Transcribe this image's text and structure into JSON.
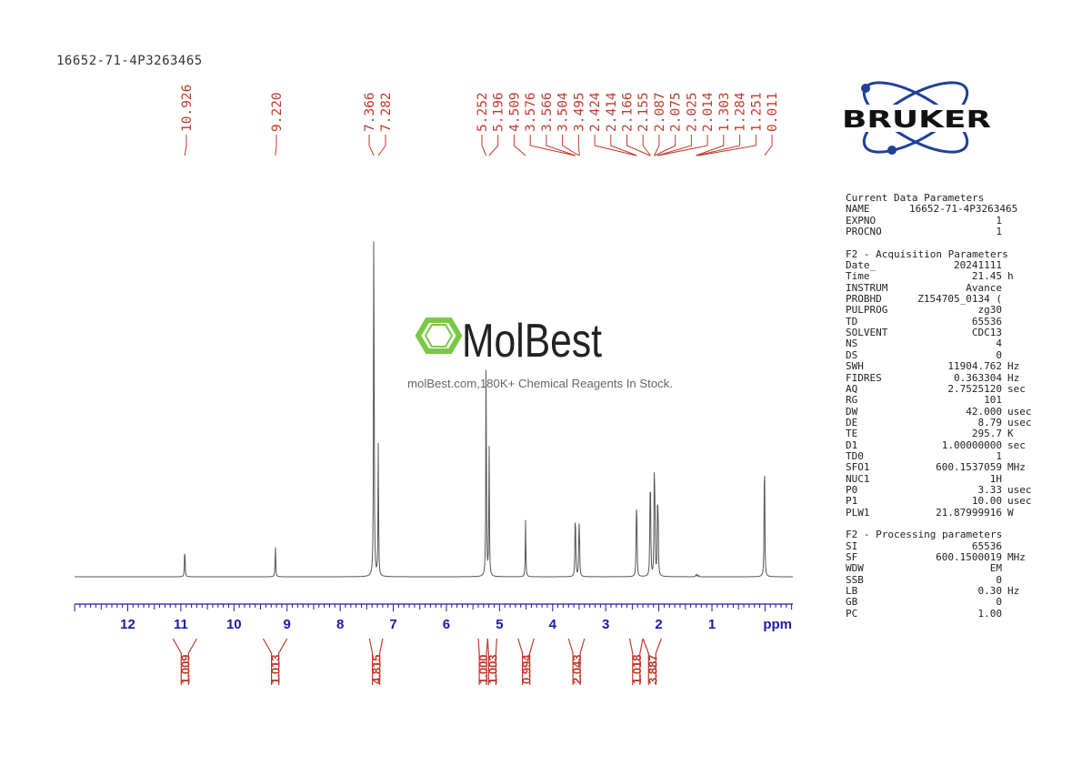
{
  "sample_title": "16652-71-4P3263465",
  "chart_data": {
    "type": "line",
    "xlabel": "ppm",
    "xlim": [
      13.0,
      -0.5
    ],
    "x_reversed": true,
    "x_ticks": [
      12,
      11,
      10,
      9,
      8,
      7,
      6,
      5,
      4,
      3,
      2,
      1
    ],
    "grid": false,
    "series": [
      {
        "peaks": [
          {
            "ppm": 10.926,
            "height": 0.08
          },
          {
            "ppm": 9.22,
            "height": 0.08
          },
          {
            "ppm": 7.366,
            "height": 1.0
          },
          {
            "ppm": 7.282,
            "height": 0.335
          },
          {
            "ppm": 5.252,
            "height": 0.585
          },
          {
            "ppm": 5.196,
            "height": 0.33
          },
          {
            "ppm": 4.509,
            "height": 0.14
          },
          {
            "ppm": 3.576,
            "height": 0.11
          },
          {
            "ppm": 3.566,
            "height": 0.09
          },
          {
            "ppm": 3.504,
            "height": 0.11
          },
          {
            "ppm": 3.495,
            "height": 0.09
          },
          {
            "ppm": 2.424,
            "height": 0.14
          },
          {
            "ppm": 2.414,
            "height": 0.12
          },
          {
            "ppm": 2.166,
            "height": 0.17
          },
          {
            "ppm": 2.155,
            "height": 0.16
          },
          {
            "ppm": 2.087,
            "height": 0.21
          },
          {
            "ppm": 2.075,
            "height": 0.2
          },
          {
            "ppm": 2.025,
            "height": 0.16
          },
          {
            "ppm": 2.014,
            "height": 0.15
          },
          {
            "ppm": 1.303,
            "height": 0.005
          },
          {
            "ppm": 1.284,
            "height": 0.005
          },
          {
            "ppm": 1.251,
            "height": 0.004
          },
          {
            "ppm": 0.011,
            "height": 0.355
          }
        ]
      }
    ],
    "peak_labels": [
      "10.926",
      "9.220",
      "7.366",
      "7.282",
      "5.252",
      "5.196",
      "4.509",
      "3.576",
      "3.566",
      "3.504",
      "3.495",
      "2.424",
      "2.414",
      "2.166",
      "2.155",
      "2.087",
      "2.075",
      "2.025",
      "2.014",
      "1.303",
      "1.284",
      "1.251",
      "0.011"
    ],
    "integrals": [
      {
        "from": 11.15,
        "to": 10.7,
        "value": "1.009"
      },
      {
        "from": 9.45,
        "to": 9.0,
        "value": "1.013"
      },
      {
        "from": 7.45,
        "to": 7.2,
        "value": "4.815"
      },
      {
        "from": 5.4,
        "to": 5.224,
        "value": "1.000"
      },
      {
        "from": 5.224,
        "to": 5.05,
        "value": "1.003"
      },
      {
        "from": 4.65,
        "to": 4.35,
        "value": "0.994"
      },
      {
        "from": 3.7,
        "to": 3.4,
        "value": "2.043"
      },
      {
        "from": 2.55,
        "to": 2.3,
        "value": "1.018"
      },
      {
        "from": 2.3,
        "to": 1.95,
        "value": "3.887"
      }
    ]
  },
  "watermark": {
    "brand": "MolBest",
    "tagline": "molBest.com,180K+ Chemical Reagents In Stock."
  },
  "logo": {
    "text": "BRUKER"
  },
  "colors": {
    "spectrum": "#555555",
    "peak_labels": "#c0392b",
    "axis": "#1a1aa8",
    "integrals": "#c0392b",
    "watermark_green": "#7ac943",
    "logo_blue": "#1f3f99"
  },
  "parameters": {
    "current": {
      "heading": "Current Data Parameters",
      "rows": [
        {
          "name": "NAME",
          "value": "16652-71-4P3263465",
          "unit": ""
        },
        {
          "name": "EXPNO",
          "value": "1",
          "unit": ""
        },
        {
          "name": "PROCNO",
          "value": "1",
          "unit": ""
        }
      ]
    },
    "acquisition": {
      "heading": "F2 - Acquisition Parameters",
      "rows": [
        {
          "name": "Date_",
          "value": "20241111",
          "unit": ""
        },
        {
          "name": "Time",
          "value": "21.45",
          "unit": "h"
        },
        {
          "name": "INSTRUM",
          "value": "Avance",
          "unit": ""
        },
        {
          "name": "PROBHD",
          "value": "Z154705_0134 (",
          "unit": ""
        },
        {
          "name": "PULPROG",
          "value": "zg30",
          "unit": ""
        },
        {
          "name": "TD",
          "value": "65536",
          "unit": ""
        },
        {
          "name": "SOLVENT",
          "value": "CDC13",
          "unit": ""
        },
        {
          "name": "NS",
          "value": "4",
          "unit": ""
        },
        {
          "name": "DS",
          "value": "0",
          "unit": ""
        },
        {
          "name": "SWH",
          "value": "11904.762",
          "unit": "Hz"
        },
        {
          "name": "FIDRES",
          "value": "0.363304",
          "unit": "Hz"
        },
        {
          "name": "AQ",
          "value": "2.7525120",
          "unit": "sec"
        },
        {
          "name": "RG",
          "value": "101",
          "unit": ""
        },
        {
          "name": "DW",
          "value": "42.000",
          "unit": "usec"
        },
        {
          "name": "DE",
          "value": "8.79",
          "unit": "usec"
        },
        {
          "name": "TE",
          "value": "295.7",
          "unit": "K"
        },
        {
          "name": "D1",
          "value": "1.00000000",
          "unit": "sec"
        },
        {
          "name": "TD0",
          "value": "1",
          "unit": ""
        },
        {
          "name": "SFO1",
          "value": "600.1537059",
          "unit": "MHz"
        },
        {
          "name": "NUC1",
          "value": "1H",
          "unit": ""
        },
        {
          "name": "P0",
          "value": "3.33",
          "unit": "usec"
        },
        {
          "name": "P1",
          "value": "10.00",
          "unit": "usec"
        },
        {
          "name": "PLW1",
          "value": "21.87999916",
          "unit": "W"
        }
      ]
    },
    "processing": {
      "heading": "F2 - Processing parameters",
      "rows": [
        {
          "name": "SI",
          "value": "65536",
          "unit": ""
        },
        {
          "name": "SF",
          "value": "600.1500019",
          "unit": "MHz"
        },
        {
          "name": "WDW",
          "value": "EM",
          "unit": ""
        },
        {
          "name": "SSB",
          "value": "0",
          "unit": ""
        },
        {
          "name": "LB",
          "value": "0.30",
          "unit": "Hz"
        },
        {
          "name": "GB",
          "value": "0",
          "unit": ""
        },
        {
          "name": "PC",
          "value": "1.00",
          "unit": ""
        }
      ]
    }
  }
}
